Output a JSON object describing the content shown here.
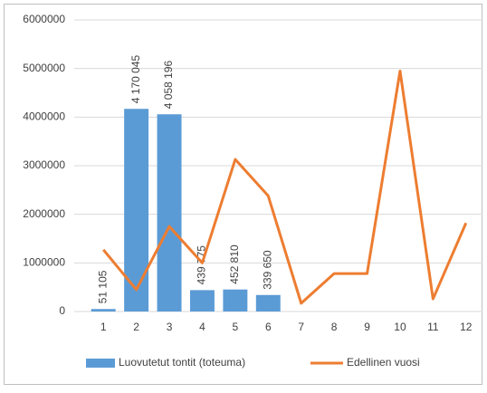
{
  "chart_data": {
    "type": "bar",
    "categories": [
      "1",
      "2",
      "3",
      "4",
      "5",
      "6",
      "7",
      "8",
      "9",
      "10",
      "11",
      "12"
    ],
    "series": [
      {
        "name": "Luovutetut tontit (toteuma)",
        "color": "#5b9bd5",
        "type": "bar",
        "values": [
          51105,
          4170045,
          4058196,
          439775,
          452810,
          339650,
          null,
          null,
          null,
          null,
          null,
          null
        ],
        "value_labels": [
          "51 105",
          "4 170 045",
          "4 058 196",
          "439 775",
          "452 810",
          "339 650",
          null,
          null,
          null,
          null,
          null,
          null
        ]
      },
      {
        "name": "Edellinen vuosi",
        "color": "#ed7d31",
        "type": "line",
        "values": [
          1270000,
          450000,
          1750000,
          1000000,
          3130000,
          2380000,
          170000,
          780000,
          780000,
          4950000,
          260000,
          1820000
        ]
      }
    ],
    "ylim": [
      0,
      6000000
    ],
    "yticks": [
      0,
      1000000,
      2000000,
      3000000,
      4000000,
      5000000,
      6000000
    ],
    "grid": true,
    "legend": "bottom"
  }
}
